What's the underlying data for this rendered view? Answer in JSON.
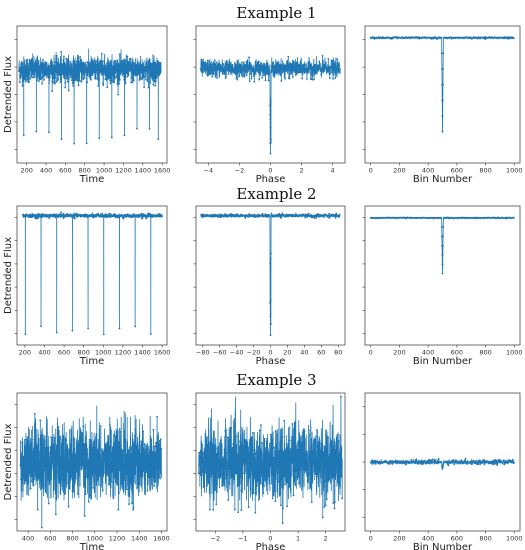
{
  "colors": {
    "series": "#1f77b4",
    "axes": "#333333",
    "background": "#ffffff"
  },
  "chart_data": [
    {
      "row_title": "Example 1",
      "ylabel": "Detrended Flux",
      "panels": [
        {
          "type": "line",
          "xlabel": "Time",
          "xlim": [
            100,
            1650
          ],
          "xticks": [
            200,
            400,
            600,
            800,
            1000,
            1200,
            1400,
            1600
          ],
          "pattern": "periodic_transits",
          "x_start": 120,
          "x_end": 1590,
          "transit_times": [
            170,
            300,
            430,
            560,
            690,
            820,
            950,
            1080,
            1210,
            1340,
            1470,
            1560
          ],
          "baseline": 0.0,
          "noise": 0.35,
          "depth_range": [
            1.6,
            2.1
          ],
          "ylim": [
            -2.6,
            1.2
          ],
          "y_tick_count": 5
        },
        {
          "type": "line",
          "xlabel": "Phase",
          "xlim": [
            -4.8,
            4.8
          ],
          "xticks": [
            -4,
            -2,
            0,
            2,
            4
          ],
          "pattern": "single_dip",
          "x_start": -4.5,
          "x_end": 4.5,
          "baseline": 0.0,
          "noise": 0.18,
          "dip_center": 0.0,
          "dip_depth": 1.8,
          "ylim": [
            -2.0,
            0.9
          ],
          "y_tick_count": 5
        },
        {
          "type": "line",
          "xlabel": "Bin Number",
          "xlim": [
            -40,
            1040
          ],
          "xticks": [
            0,
            200,
            400,
            600,
            800,
            1000
          ],
          "pattern": "binned_dip",
          "x_start": 0,
          "x_end": 1000,
          "baseline": 0.0,
          "noise": 0.01,
          "dip_center": 500,
          "dip_depth": 1.2,
          "ylim": [
            -1.6,
            0.15
          ],
          "y_tick_count": 5
        }
      ]
    },
    {
      "row_title": "Example 2",
      "ylabel": "Detrended Flux",
      "panels": [
        {
          "type": "line",
          "xlabel": "Time",
          "xlim": [
            120,
            1650
          ],
          "xticks": [
            200,
            400,
            600,
            800,
            1000,
            1200,
            1400,
            1600
          ],
          "pattern": "periodic_transits",
          "x_start": 180,
          "x_end": 1600,
          "transit_times": [
            205,
            365,
            525,
            685,
            845,
            1005,
            1165,
            1325,
            1485
          ],
          "baseline": 0.0,
          "noise": 0.03,
          "depth_range": [
            1.7,
            1.9
          ],
          "ylim": [
            -2.0,
            0.15
          ],
          "y_tick_count": 6
        },
        {
          "type": "line",
          "xlabel": "Phase",
          "xlim": [
            -88,
            88
          ],
          "xticks": [
            -80,
            -60,
            -40,
            -20,
            0,
            20,
            40,
            60,
            80
          ],
          "pattern": "single_dip",
          "x_start": -82,
          "x_end": 82,
          "baseline": 0.0,
          "noise": 0.025,
          "dip_center": 0.0,
          "dip_depth": 1.85,
          "ylim": [
            -2.0,
            0.15
          ],
          "y_tick_count": 6
        },
        {
          "type": "line",
          "xlabel": "Bin Number",
          "xlim": [
            -40,
            1040
          ],
          "xticks": [
            0,
            200,
            400,
            600,
            800,
            1000
          ],
          "pattern": "binned_dip",
          "x_start": 0,
          "x_end": 1000,
          "baseline": 0.0,
          "noise": 0.005,
          "dip_center": 500,
          "dip_depth": 0.7,
          "ylim": [
            -1.6,
            0.15
          ],
          "y_tick_count": 6
        }
      ]
    },
    {
      "row_title": "Example 3",
      "ylabel": "Detrended Flux",
      "panels": [
        {
          "type": "line",
          "xlabel": "Time",
          "xlim": [
            300,
            1650
          ],
          "xticks": [
            400,
            600,
            800,
            1000,
            1200,
            1400,
            1600
          ],
          "pattern": "noise",
          "x_start": 330,
          "x_end": 1600,
          "baseline": 0.0,
          "noise": 0.9,
          "ylim": [
            -1.9,
            1.9
          ],
          "y_tick_count": 6
        },
        {
          "type": "line",
          "xlabel": "Phase",
          "xlim": [
            -2.7,
            2.7
          ],
          "xticks": [
            -2,
            -1,
            0,
            1,
            2
          ],
          "pattern": "noise",
          "x_start": -2.6,
          "x_end": 2.6,
          "baseline": 0.0,
          "noise": 0.9,
          "ylim": [
            -1.9,
            1.9
          ],
          "y_tick_count": 6
        },
        {
          "type": "line",
          "xlabel": "Bin Number",
          "xlim": [
            -40,
            1040
          ],
          "xticks": [
            0,
            200,
            400,
            600,
            800,
            1000
          ],
          "pattern": "binned_dip",
          "x_start": 0,
          "x_end": 1000,
          "baseline": 0.0,
          "noise": 0.04,
          "dip_center": 500,
          "dip_depth": 0.12,
          "ylim": [
            -1.2,
            1.2
          ],
          "y_tick_count": 5
        }
      ]
    }
  ]
}
